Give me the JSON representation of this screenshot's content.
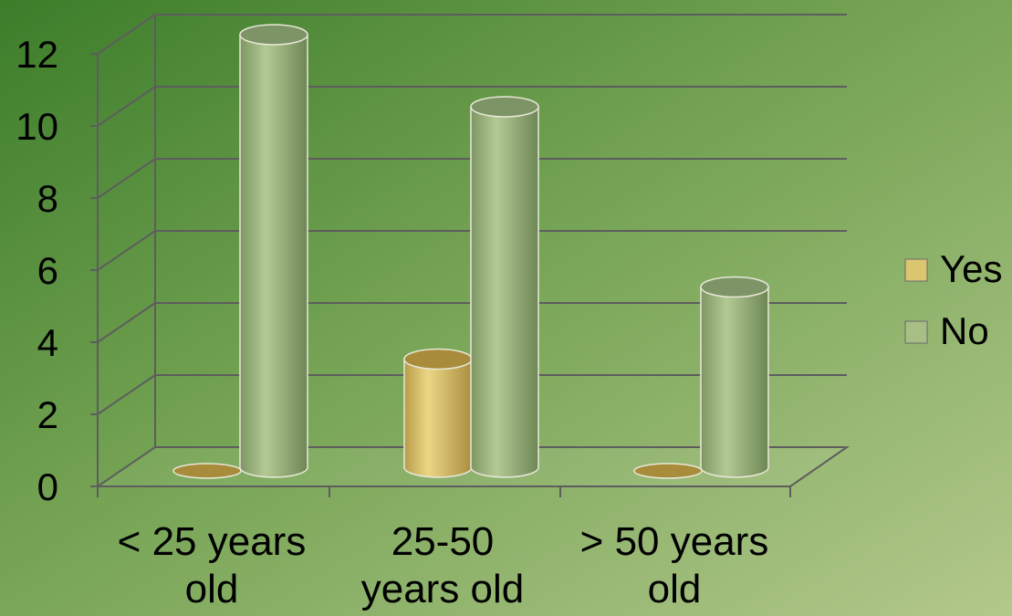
{
  "chart_data": {
    "type": "bar",
    "categories": [
      "< 25 years old",
      "25-50 years old",
      "> 50 years old"
    ],
    "category_lines": [
      [
        "< 25 years",
        "old"
      ],
      [
        "25-50",
        "years old"
      ],
      [
        "> 50 years",
        "old"
      ]
    ],
    "series": [
      {
        "name": "Yes",
        "values": [
          0,
          3,
          0
        ],
        "color": "#dcc56f"
      },
      {
        "name": "No",
        "values": [
          12,
          10,
          5
        ],
        "color": "#a7bf85"
      }
    ],
    "ylim": [
      0,
      12
    ],
    "yticks": [
      "0",
      "2",
      "4",
      "6",
      "8",
      "10",
      "12"
    ],
    "grid": true,
    "legend_position": "right",
    "bar_shape": "3d-cylinder"
  }
}
